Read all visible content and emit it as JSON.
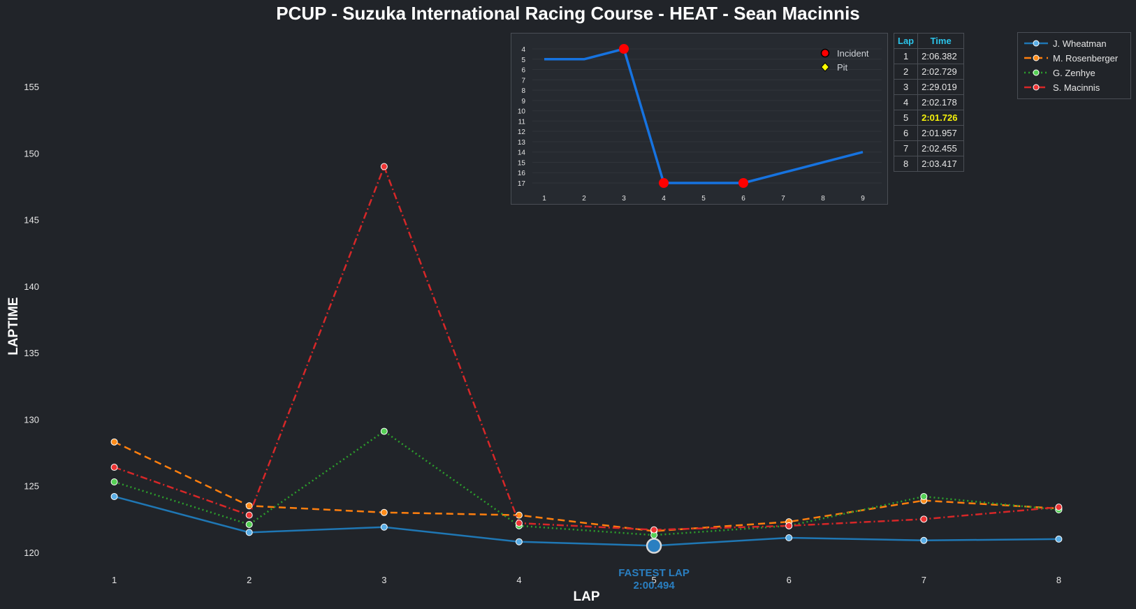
{
  "chart_data": [
    {
      "type": "line",
      "title": "PCUP - Suzuka International Racing Course - HEAT - Sean Macinnis",
      "xlabel": "LAP",
      "ylabel": "LAPTIME",
      "categories": [
        1,
        2,
        3,
        4,
        5,
        6,
        7,
        8
      ],
      "xlim": [
        0.5,
        8.5
      ],
      "ylim": [
        119,
        159
      ],
      "yticks": [
        120,
        125,
        130,
        135,
        140,
        145,
        150,
        155
      ],
      "grid": false,
      "legend_position": "top-right",
      "series": [
        {
          "name": "J. Wheatman",
          "color": "#1f77b4",
          "marker_fill": "#5aaee6",
          "dash": "",
          "values": [
            124.2,
            121.5,
            121.9,
            120.8,
            120.5,
            121.1,
            120.9,
            121.0
          ]
        },
        {
          "name": "M. Rosenberger",
          "color": "#ff7f0e",
          "marker_fill": "#ff8c1a",
          "dash": "10,6",
          "values": [
            128.3,
            123.5,
            123.0,
            122.8,
            121.6,
            122.3,
            123.9,
            123.3
          ]
        },
        {
          "name": "G. Zenhye",
          "color": "#2ca02c",
          "marker_fill": "#55d055",
          "dash": "2,4",
          "values": [
            125.3,
            122.1,
            129.1,
            122.0,
            121.3,
            122.0,
            124.2,
            123.2
          ]
        },
        {
          "name": "S. Macinnis",
          "color": "#d62728",
          "marker_fill": "#ee3535",
          "dash": "10,4,2,4",
          "values": [
            126.4,
            122.8,
            149.0,
            122.2,
            121.7,
            122.0,
            122.5,
            123.4
          ]
        }
      ],
      "annotation": {
        "label": "FASTEST LAP",
        "time": "2:00.494",
        "lap": 5,
        "value": 120.494,
        "color": "#2a7fc1"
      }
    },
    {
      "type": "line",
      "title": "",
      "categories": [
        1,
        2,
        3,
        4,
        5,
        6,
        7,
        8,
        9
      ],
      "yticks": [
        4,
        5,
        6,
        7,
        8,
        9,
        10,
        11,
        12,
        13,
        14,
        15,
        16,
        17
      ],
      "y_inverted": true,
      "color": "#1673e0",
      "values": [
        5,
        5,
        4,
        17,
        17,
        17,
        16,
        15,
        14
      ],
      "incident_laps": [
        3,
        4,
        6
      ],
      "pit_laps": [],
      "legend": [
        {
          "label": "Incident",
          "color": "#ff0000"
        },
        {
          "label": "Pit",
          "color": "#ffff00"
        }
      ]
    },
    {
      "type": "table",
      "columns": [
        "Lap",
        "Time"
      ],
      "rows": [
        [
          "1",
          "2:06.382"
        ],
        [
          "2",
          "2:02.729"
        ],
        [
          "3",
          "2:29.019"
        ],
        [
          "4",
          "2:02.178"
        ],
        [
          "5",
          "2:01.726"
        ],
        [
          "6",
          "2:01.957"
        ],
        [
          "7",
          "2:02.455"
        ],
        [
          "8",
          "2:03.417"
        ]
      ],
      "highlight_row": 4,
      "highlight_color": "#f6f20a"
    }
  ]
}
